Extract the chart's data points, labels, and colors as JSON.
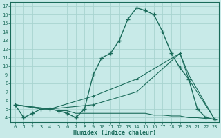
{
  "xlabel": "Humidex (Indice chaleur)",
  "bg_color": "#c8eae8",
  "grid_color": "#a8d4d0",
  "line_color": "#1a6b5a",
  "xlim": [
    -0.5,
    23.5
  ],
  "ylim": [
    3.5,
    17.5
  ],
  "yticks": [
    4,
    5,
    6,
    7,
    8,
    9,
    10,
    11,
    12,
    13,
    14,
    15,
    16,
    17
  ],
  "xticks": [
    0,
    1,
    2,
    3,
    4,
    5,
    6,
    7,
    8,
    9,
    10,
    11,
    12,
    13,
    14,
    15,
    16,
    17,
    18,
    19,
    20,
    21,
    22,
    23
  ],
  "line1_x": [
    0,
    1,
    2,
    3,
    4,
    5,
    6,
    7,
    8,
    9,
    10,
    11,
    12,
    13,
    14,
    15,
    16,
    17,
    18,
    19,
    20,
    21,
    22,
    23
  ],
  "line1_y": [
    5.5,
    4.0,
    4.5,
    5.0,
    5.0,
    4.8,
    4.5,
    4.0,
    5.0,
    9.0,
    11.0,
    11.5,
    13.0,
    15.5,
    16.8,
    16.5,
    16.0,
    14.0,
    11.5,
    9.8,
    8.5,
    5.0,
    4.0,
    3.8
  ],
  "line2_x": [
    0,
    3,
    4,
    5,
    6,
    7,
    8,
    9,
    10,
    11,
    12,
    13,
    14,
    15,
    16,
    17,
    18,
    19,
    20,
    21,
    22,
    23
  ],
  "line2_y": [
    5.5,
    5.0,
    5.0,
    4.8,
    4.8,
    4.5,
    4.5,
    4.5,
    4.5,
    4.5,
    4.5,
    4.5,
    4.5,
    4.5,
    4.3,
    4.3,
    4.2,
    4.2,
    4.0,
    4.0,
    3.9,
    3.8
  ],
  "line3_x": [
    0,
    4,
    9,
    14,
    19,
    20,
    23
  ],
  "line3_y": [
    5.5,
    5.0,
    5.5,
    7.0,
    11.5,
    9.0,
    3.8
  ],
  "line4_x": [
    0,
    4,
    9,
    14,
    19,
    20,
    23
  ],
  "line4_y": [
    5.5,
    5.0,
    6.5,
    8.5,
    11.5,
    8.5,
    3.8
  ]
}
